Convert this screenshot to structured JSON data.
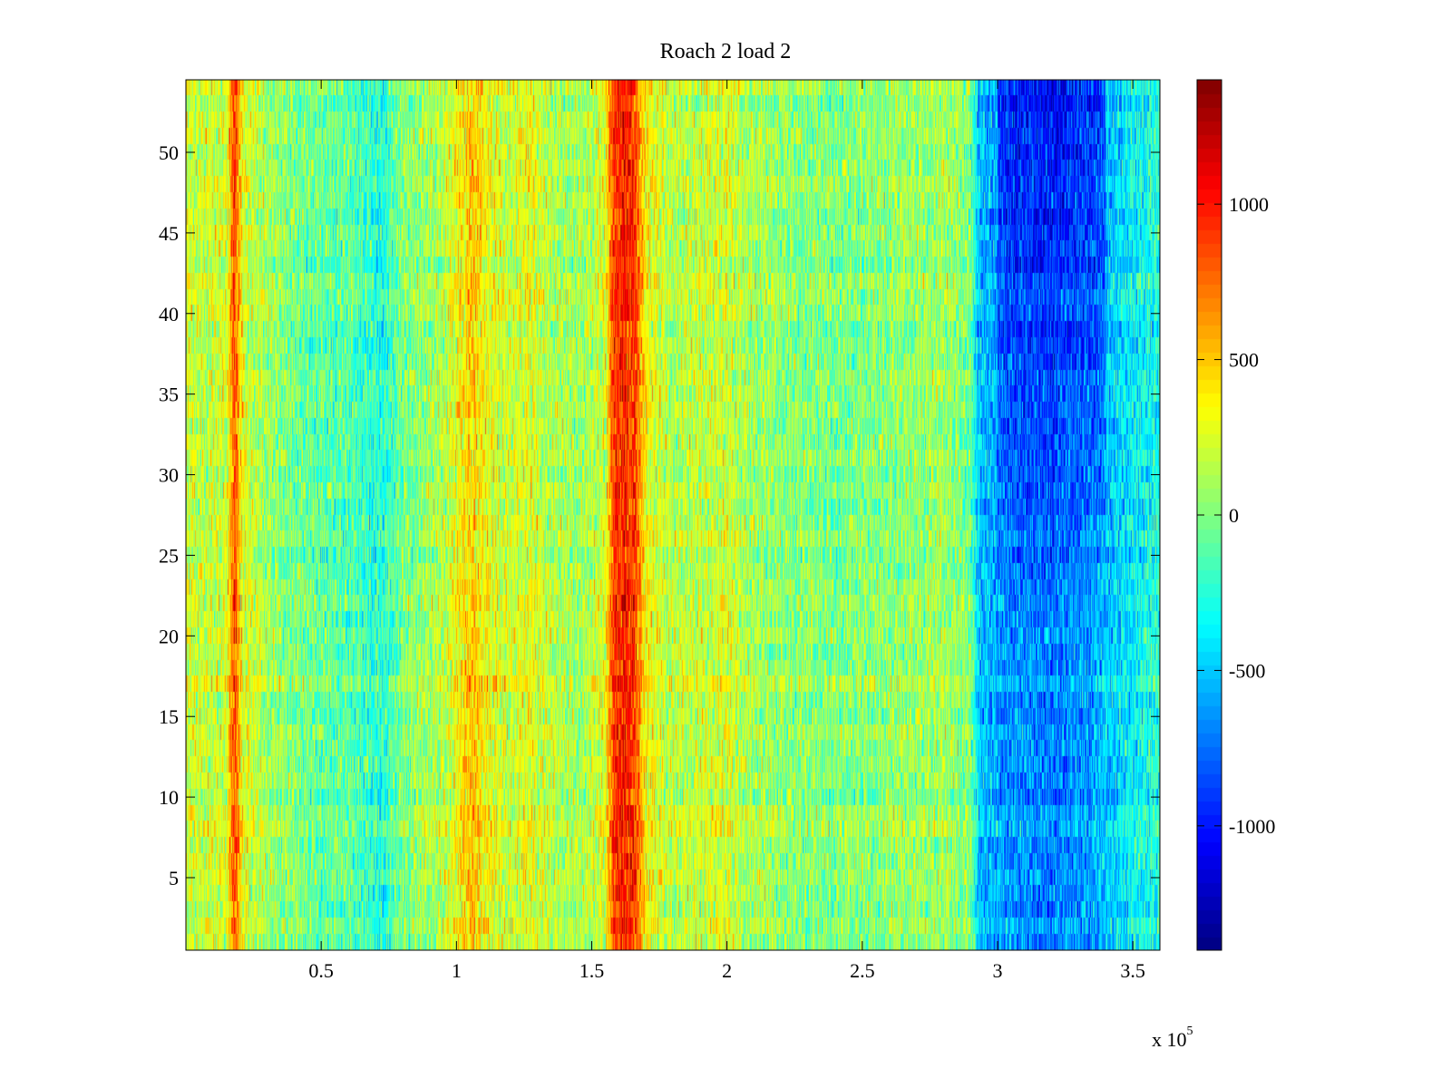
{
  "chart_data": {
    "type": "heatmap",
    "title": "Roach 2 load 2",
    "xlabel": "",
    "ylabel": "",
    "x_exponent_base": "x 10",
    "x_exponent_power": "5",
    "xlim": [
      0,
      3.6
    ],
    "ylim": [
      0.5,
      54.5
    ],
    "x_ticks": [
      0.5,
      1,
      1.5,
      2,
      2.5,
      3,
      3.5
    ],
    "x_tick_labels": [
      "0.5",
      "1",
      "1.5",
      "2",
      "2.5",
      "3",
      "3.5"
    ],
    "y_ticks": [
      5,
      10,
      15,
      20,
      25,
      30,
      35,
      40,
      45,
      50
    ],
    "y_tick_labels": [
      "5",
      "10",
      "15",
      "20",
      "25",
      "30",
      "35",
      "40",
      "45",
      "50"
    ],
    "rows": 54,
    "colorbar": {
      "colormap": "jet",
      "clim": [
        -1400,
        1400
      ],
      "ticks": [
        -1000,
        -500,
        0,
        500,
        1000
      ],
      "tick_labels": [
        "-1000",
        "-500",
        "0",
        "500",
        "1000"
      ]
    },
    "column_profile": {
      "x": [
        0,
        0.05,
        0.15,
        0.18,
        0.2,
        0.22,
        0.3,
        0.45,
        0.6,
        0.73,
        0.8,
        0.95,
        1.02,
        1.06,
        1.1,
        1.2,
        1.27,
        1.35,
        1.45,
        1.55,
        1.58,
        1.62,
        1.66,
        1.7,
        1.8,
        2.0,
        2.05,
        2.2,
        2.4,
        2.6,
        2.8,
        2.9,
        2.93,
        3.05,
        3.2,
        3.35,
        3.5,
        3.6
      ],
      "values": [
        250,
        200,
        220,
        900,
        450,
        250,
        100,
        -50,
        -100,
        -250,
        0,
        150,
        400,
        500,
        350,
        200,
        300,
        150,
        100,
        250,
        900,
        1000,
        900,
        350,
        150,
        250,
        150,
        50,
        0,
        50,
        100,
        0,
        -500,
        -650,
        -700,
        -600,
        -350,
        -250
      ]
    },
    "notes_by_row_band": {
      "upper_rows_range": [
        20,
        54
      ],
      "upper_rows_extra_value_in_x_3_to_3.4": -350
    }
  },
  "colors": {
    "axis": "#000000",
    "background": "#ffffff"
  }
}
